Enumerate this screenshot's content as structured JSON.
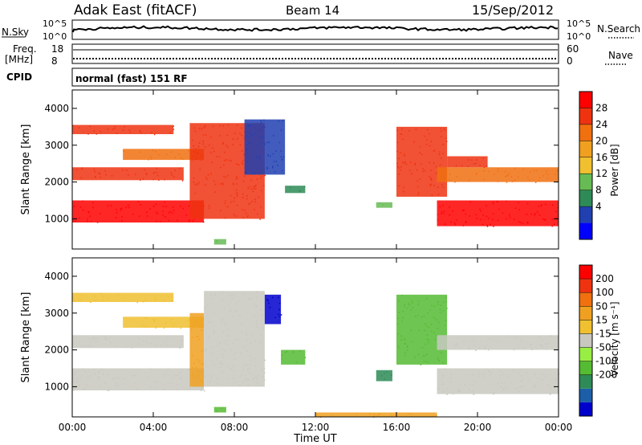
{
  "header": {
    "title": "Adak East (fitACF)",
    "beam": "Beam 14",
    "date": "15/Sep/2012"
  },
  "top_panels": {
    "nsky_label": "N.Sky",
    "nsearch_label": "N.Search",
    "nsky_ticks": [
      "10^5",
      "10^0"
    ],
    "nsearch_ticks": [
      "10^5",
      "10^0"
    ],
    "freq_label_1": "Freq.",
    "freq_label_2": "[MHz]",
    "freq_ticks": [
      "18",
      "8"
    ],
    "nave_label": "Nave",
    "nave_ticks": [
      "60",
      "0"
    ],
    "cpid_label": "CPID",
    "cpid_value": "normal (fast) 151 RF"
  },
  "colorbars": {
    "power": {
      "label": "Power [dB]",
      "ticks": [
        "28",
        "24",
        "20",
        "16",
        "12",
        "8",
        "4"
      ],
      "colors": [
        "#0000ff",
        "#2040b0",
        "#2e8b57",
        "#66bb55",
        "#f0c030",
        "#f0a020",
        "#f07010",
        "#ee3311",
        "#ff0000"
      ]
    },
    "velocity": {
      "label": "Velocity [m s⁻¹]",
      "ticks": [
        "200",
        "100",
        "50",
        "15",
        "-15",
        "-50",
        "-100",
        "-200"
      ],
      "colors": [
        "#0000cc",
        "#1c5fa8",
        "#2e8b57",
        "#55bb33",
        "#99ee44",
        "#c8c8c0",
        "#f0c030",
        "#f0a020",
        "#f07010",
        "#ee3311",
        "#ff0000"
      ]
    }
  },
  "chart_data": [
    {
      "type": "heatmap",
      "name": "power",
      "ylabel": "Slant Range [km]",
      "x_ticks": [
        "00:00",
        "04:00",
        "08:00",
        "12:00",
        "16:00",
        "20:00",
        "00:00"
      ],
      "y_ticks": [
        "4000",
        "3000",
        "2000",
        "1000"
      ],
      "ylim": [
        180,
        4500
      ],
      "xlim": [
        0,
        24
      ],
      "bands": [
        {
          "t0": 0.0,
          "t1": 6.5,
          "r0": 900,
          "r1": 1500,
          "c": "#ff0000"
        },
        {
          "t0": 0.0,
          "t1": 5.5,
          "r0": 2050,
          "r1": 2400,
          "c": "#ee3311"
        },
        {
          "t0": 0.0,
          "t1": 5.0,
          "r0": 3300,
          "r1": 3550,
          "c": "#ee3311"
        },
        {
          "t0": 2.5,
          "t1": 6.5,
          "r0": 2600,
          "r1": 2900,
          "c": "#f07010"
        },
        {
          "t0": 5.8,
          "t1": 9.5,
          "r0": 1000,
          "r1": 3600,
          "c": "#ee3311"
        },
        {
          "t0": 8.5,
          "t1": 10.5,
          "r0": 2200,
          "r1": 3700,
          "c": "#2040b0"
        },
        {
          "t0": 10.5,
          "t1": 11.5,
          "r0": 1700,
          "r1": 1900,
          "c": "#2e8b57"
        },
        {
          "t0": 15.0,
          "t1": 15.8,
          "r0": 1300,
          "r1": 1450,
          "c": "#66bb55"
        },
        {
          "t0": 16.0,
          "t1": 18.5,
          "r0": 1600,
          "r1": 3500,
          "c": "#ee3311"
        },
        {
          "t0": 18.0,
          "t1": 24.0,
          "r0": 800,
          "r1": 1500,
          "c": "#ff0000"
        },
        {
          "t0": 18.0,
          "t1": 24.0,
          "r0": 2000,
          "r1": 2400,
          "c": "#f07010"
        },
        {
          "t0": 18.5,
          "t1": 20.5,
          "r0": 2400,
          "r1": 2700,
          "c": "#ee3311"
        },
        {
          "t0": 7.0,
          "t1": 7.6,
          "r0": 300,
          "r1": 450,
          "c": "#66bb55"
        }
      ]
    },
    {
      "type": "heatmap",
      "name": "velocity",
      "xlabel": "Time UT",
      "ylabel": "Slant Range [km]",
      "x_ticks": [
        "00:00",
        "04:00",
        "08:00",
        "12:00",
        "16:00",
        "20:00",
        "00:00"
      ],
      "y_ticks": [
        "4000",
        "3000",
        "2000",
        "1000"
      ],
      "ylim": [
        180,
        4500
      ],
      "xlim": [
        0,
        24
      ],
      "bands": [
        {
          "t0": 0.0,
          "t1": 6.5,
          "r0": 900,
          "r1": 1500,
          "c": "#c8c8c0"
        },
        {
          "t0": 0.0,
          "t1": 5.5,
          "r0": 2050,
          "r1": 2400,
          "c": "#c8c8c0"
        },
        {
          "t0": 0.0,
          "t1": 5.0,
          "r0": 3300,
          "r1": 3550,
          "c": "#f0c030"
        },
        {
          "t0": 2.5,
          "t1": 6.5,
          "r0": 2600,
          "r1": 2900,
          "c": "#f0c030"
        },
        {
          "t0": 5.8,
          "t1": 6.5,
          "r0": 1000,
          "r1": 3000,
          "c": "#f0a020"
        },
        {
          "t0": 6.5,
          "t1": 9.5,
          "r0": 1000,
          "r1": 3600,
          "c": "#c8c8c0"
        },
        {
          "t0": 9.5,
          "t1": 10.3,
          "r0": 2700,
          "r1": 3500,
          "c": "#0000cc"
        },
        {
          "t0": 10.3,
          "t1": 11.5,
          "r0": 1600,
          "r1": 2000,
          "c": "#55bb33"
        },
        {
          "t0": 15.0,
          "t1": 15.8,
          "r0": 1150,
          "r1": 1450,
          "c": "#2e8b57"
        },
        {
          "t0": 16.0,
          "t1": 18.5,
          "r0": 1600,
          "r1": 3500,
          "c": "#55bb33"
        },
        {
          "t0": 18.0,
          "t1": 24.0,
          "r0": 800,
          "r1": 1500,
          "c": "#c8c8c0"
        },
        {
          "t0": 18.0,
          "t1": 24.0,
          "r0": 2000,
          "r1": 2400,
          "c": "#c8c8c0"
        },
        {
          "t0": 7.0,
          "t1": 7.6,
          "r0": 300,
          "r1": 450,
          "c": "#55bb33"
        },
        {
          "t0": 12.0,
          "t1": 18.0,
          "r0": 180,
          "r1": 300,
          "c": "#f0a020"
        }
      ]
    }
  ]
}
